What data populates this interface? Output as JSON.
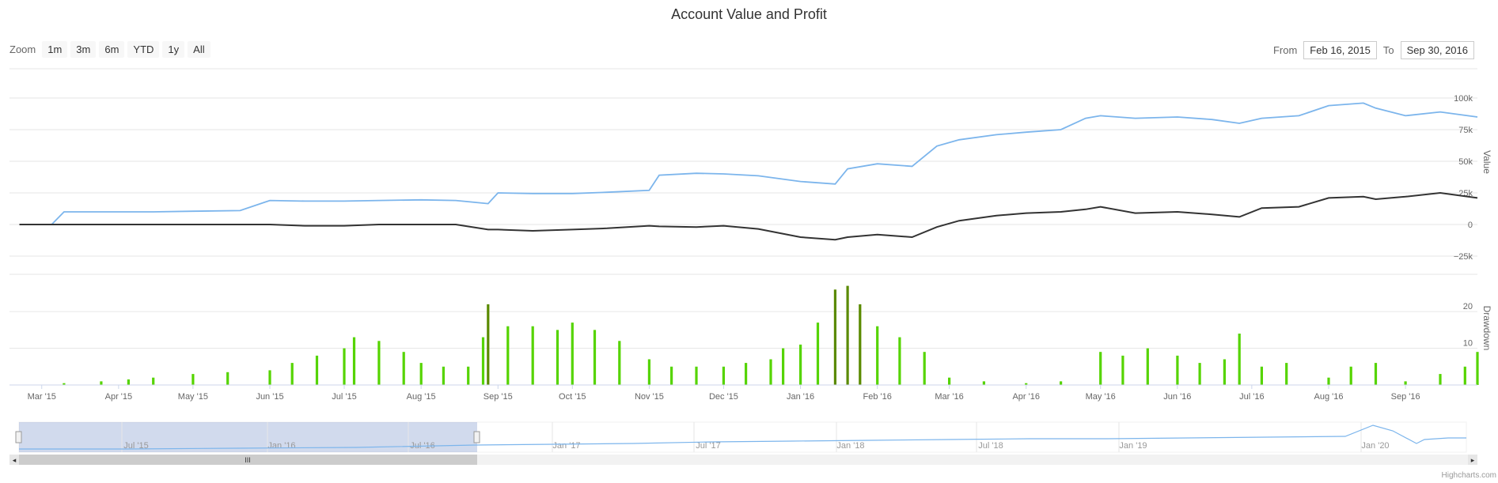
{
  "title": "Account Value and Profit",
  "zoom": {
    "label": "Zoom",
    "buttons": [
      "1m",
      "3m",
      "6m",
      "YTD",
      "1y",
      "All"
    ]
  },
  "range": {
    "from_label": "From",
    "from_value": "Feb 16, 2015",
    "to_label": "To",
    "to_value": "Sep 30, 2016"
  },
  "credit": "Highcharts.com",
  "colors": {
    "value": "#7cb5ec",
    "profit": "#333333",
    "drawdown": "#55d400",
    "drawdown_dark": "#5a8a00"
  },
  "chart_data": [
    {
      "type": "line",
      "ylabel": "Value",
      "ytick_labels": [
        "100k",
        "75k",
        "50k",
        "25k",
        "0",
        "−25k"
      ],
      "ylim": [
        -25000,
        100000
      ],
      "x": [
        "2015-02-20",
        "2015-03-05",
        "2015-03-10",
        "2015-03-25",
        "2015-04-15",
        "2015-05-01",
        "2015-05-20",
        "2015-06-01",
        "2015-06-15",
        "2015-07-01",
        "2015-07-15",
        "2015-08-01",
        "2015-08-15",
        "2015-08-28",
        "2015-09-01",
        "2015-09-15",
        "2015-10-01",
        "2015-10-15",
        "2015-11-01",
        "2015-11-05",
        "2015-11-20",
        "2015-12-01",
        "2015-12-15",
        "2016-01-01",
        "2016-01-15",
        "2016-01-20",
        "2016-02-01",
        "2016-02-15",
        "2016-02-25",
        "2016-03-05",
        "2016-03-20",
        "2016-04-01",
        "2016-04-15",
        "2016-04-25",
        "2016-05-01",
        "2016-05-15",
        "2016-06-01",
        "2016-06-15",
        "2016-06-26",
        "2016-07-05",
        "2016-07-20",
        "2016-08-01",
        "2016-08-15",
        "2016-08-20",
        "2016-09-01",
        "2016-09-15",
        "2016-09-30"
      ],
      "series": [
        {
          "name": "",
          "values": [
            0,
            0,
            10000,
            10000,
            10000,
            10500,
            11000,
            19000,
            18500,
            18500,
            19000,
            19500,
            19000,
            16500,
            25000,
            24500,
            24500,
            25500,
            27000,
            39000,
            40500,
            40000,
            38500,
            34000,
            32000,
            44000,
            48000,
            46000,
            62000,
            67000,
            71000,
            73000,
            75000,
            84000,
            86000,
            84000,
            85000,
            83000,
            80000,
            84000,
            86000,
            94000,
            96000,
            92000,
            86000,
            89000,
            85000
          ]
        },
        {
          "name": "",
          "values": [
            0,
            0,
            0,
            0,
            0,
            0,
            0,
            0,
            -1000,
            -1000,
            0,
            0,
            0,
            -4000,
            -4000,
            -5000,
            -4000,
            -3000,
            -1000,
            -1500,
            -2000,
            -1000,
            -3500,
            -10000,
            -12000,
            -10000,
            -8000,
            -10000,
            -2000,
            3000,
            7000,
            9000,
            10000,
            12000,
            14000,
            9000,
            10000,
            8000,
            6000,
            13000,
            14000,
            21000,
            22000,
            20000,
            22000,
            25000,
            21000
          ]
        }
      ]
    },
    {
      "type": "bar",
      "ylabel": "Drawdown",
      "ytick_labels": [
        "20",
        "10"
      ],
      "ylim": [
        0,
        28
      ],
      "x": [
        "2015-03-10",
        "2015-03-25",
        "2015-04-05",
        "2015-04-15",
        "2015-05-01",
        "2015-05-15",
        "2015-06-01",
        "2015-06-10",
        "2015-06-20",
        "2015-07-01",
        "2015-07-05",
        "2015-07-15",
        "2015-07-25",
        "2015-08-01",
        "2015-08-10",
        "2015-08-20",
        "2015-08-26",
        "2015-08-28",
        "2015-09-05",
        "2015-09-15",
        "2015-09-25",
        "2015-10-01",
        "2015-10-10",
        "2015-10-20",
        "2015-11-01",
        "2015-11-10",
        "2015-11-20",
        "2015-12-01",
        "2015-12-10",
        "2015-12-20",
        "2015-12-25",
        "2016-01-01",
        "2016-01-08",
        "2016-01-15",
        "2016-01-20",
        "2016-01-25",
        "2016-02-01",
        "2016-02-10",
        "2016-02-20",
        "2016-03-01",
        "2016-03-15",
        "2016-04-01",
        "2016-04-15",
        "2016-05-01",
        "2016-05-10",
        "2016-05-20",
        "2016-06-01",
        "2016-06-10",
        "2016-06-20",
        "2016-06-26",
        "2016-07-05",
        "2016-07-15",
        "2016-08-01",
        "2016-08-10",
        "2016-08-20",
        "2016-09-01",
        "2016-09-15",
        "2016-09-25",
        "2016-09-30"
      ],
      "values": [
        0.5,
        1,
        1.5,
        2,
        3,
        3.5,
        4,
        6,
        8,
        10,
        13,
        12,
        9,
        6,
        5,
        5,
        13,
        22,
        16,
        16,
        15,
        17,
        15,
        12,
        7,
        5,
        5,
        5,
        6,
        7,
        10,
        11,
        17,
        26,
        27,
        22,
        16,
        13,
        9,
        2,
        1,
        0.5,
        1,
        9,
        8,
        10,
        8,
        6,
        7,
        14,
        5,
        6,
        2,
        5,
        6,
        1,
        3,
        5,
        9
      ]
    }
  ],
  "x_ticks": [
    "Mar '15",
    "Apr '15",
    "May '15",
    "Jun '15",
    "Jul '15",
    "Aug '15",
    "Sep '15",
    "Oct '15",
    "Nov '15",
    "Dec '15",
    "Jan '16",
    "Feb '16",
    "Mar '16",
    "Apr '16",
    "May '16",
    "Jun '16",
    "Jul '16",
    "Aug '16",
    "Sep '16"
  ],
  "navigator": {
    "ticks": [
      "Jul '15",
      "Jan '16",
      "Jul '16",
      "Jan '17",
      "Jul '17",
      "Jan '18",
      "Jul '18",
      "Jan '19",
      "Jan '20"
    ],
    "scrollbar_grip": "III"
  }
}
